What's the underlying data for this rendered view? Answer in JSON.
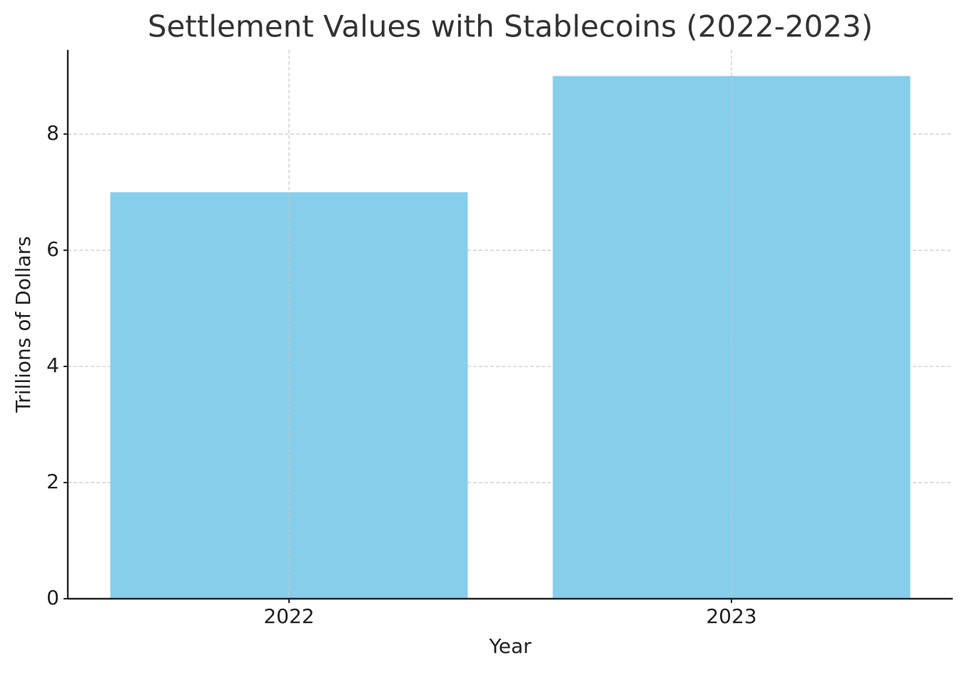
{
  "chart_data": {
    "type": "bar",
    "title": "Settlement Values with Stablecoins (2022-2023)",
    "x_label": "Year",
    "y_label": "Trillions of Dollars",
    "categories": [
      "2022",
      "2023"
    ],
    "values": [
      7,
      9
    ],
    "color": "#87ceeb",
    "ylim": [
      0,
      9.45
    ],
    "yticks": [
      0,
      2,
      4,
      6,
      8
    ],
    "grid": true
  }
}
